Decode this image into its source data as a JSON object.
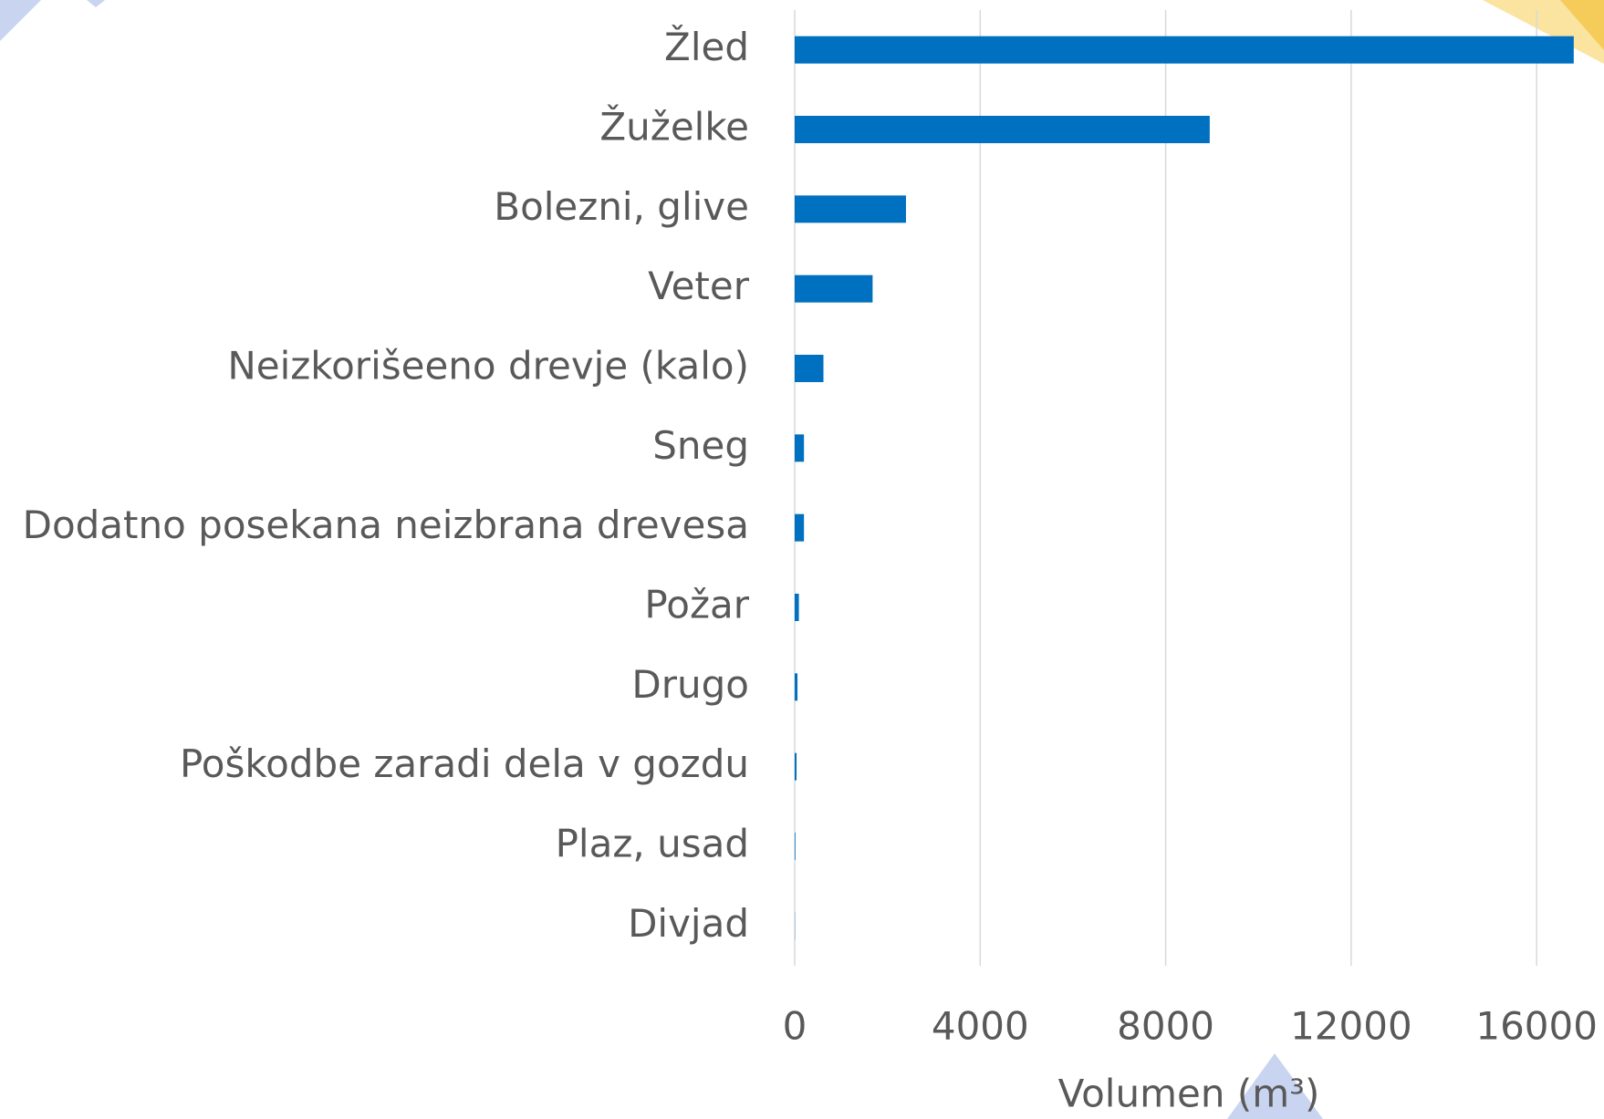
{
  "chart_data": {
    "type": "bar",
    "orientation": "horizontal",
    "x_label": "Volumen (m³)",
    "categories": [
      "Žled",
      "Žuželke",
      "Bolezni, glive",
      "Veter",
      "Neizkorišeeno drevje (kalo)",
      "Sneg",
      "Dodatno posekana neizbrana drevesa",
      "Požar",
      "Drugo",
      "Poškodbe zaradi dela v gozdu",
      "Plaz, usad",
      "Divjad"
    ],
    "values": [
      16800,
      8950,
      2400,
      1680,
      620,
      200,
      200,
      90,
      60,
      40,
      15,
      5
    ],
    "color": "#0070c0",
    "xlim": [
      0,
      17000
    ],
    "xticks": [
      0,
      4000,
      8000,
      12000,
      16000
    ],
    "grid": true
  }
}
